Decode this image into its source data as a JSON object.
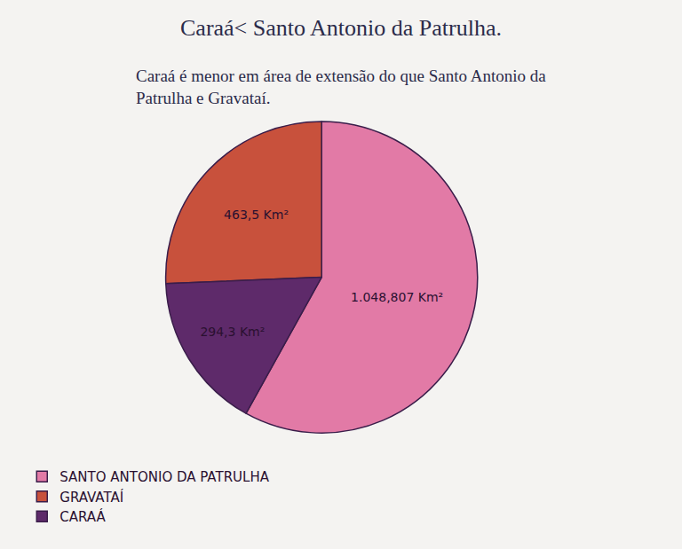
{
  "chart_data": {
    "type": "pie",
    "title": "Caraá< Santo Antonio da Patrulha.",
    "subtitle": "Caraá é menor em área de extensão do que Santo Antonio da Patrulha e Gravataí.",
    "categories": [
      "SANTO ANTONIO DA PATRULHA",
      "GRAVATAÍ",
      "CARAÁ"
    ],
    "values": [
      1048.807,
      463.5,
      294.3
    ],
    "value_labels": [
      "1.048,807 Km²",
      "463,5 Km²",
      "294,3 Km²"
    ],
    "colors": [
      "#e27aa6",
      "#c8513c",
      "#5e2a6a"
    ],
    "data_labels": true,
    "legend": "bottom left"
  }
}
